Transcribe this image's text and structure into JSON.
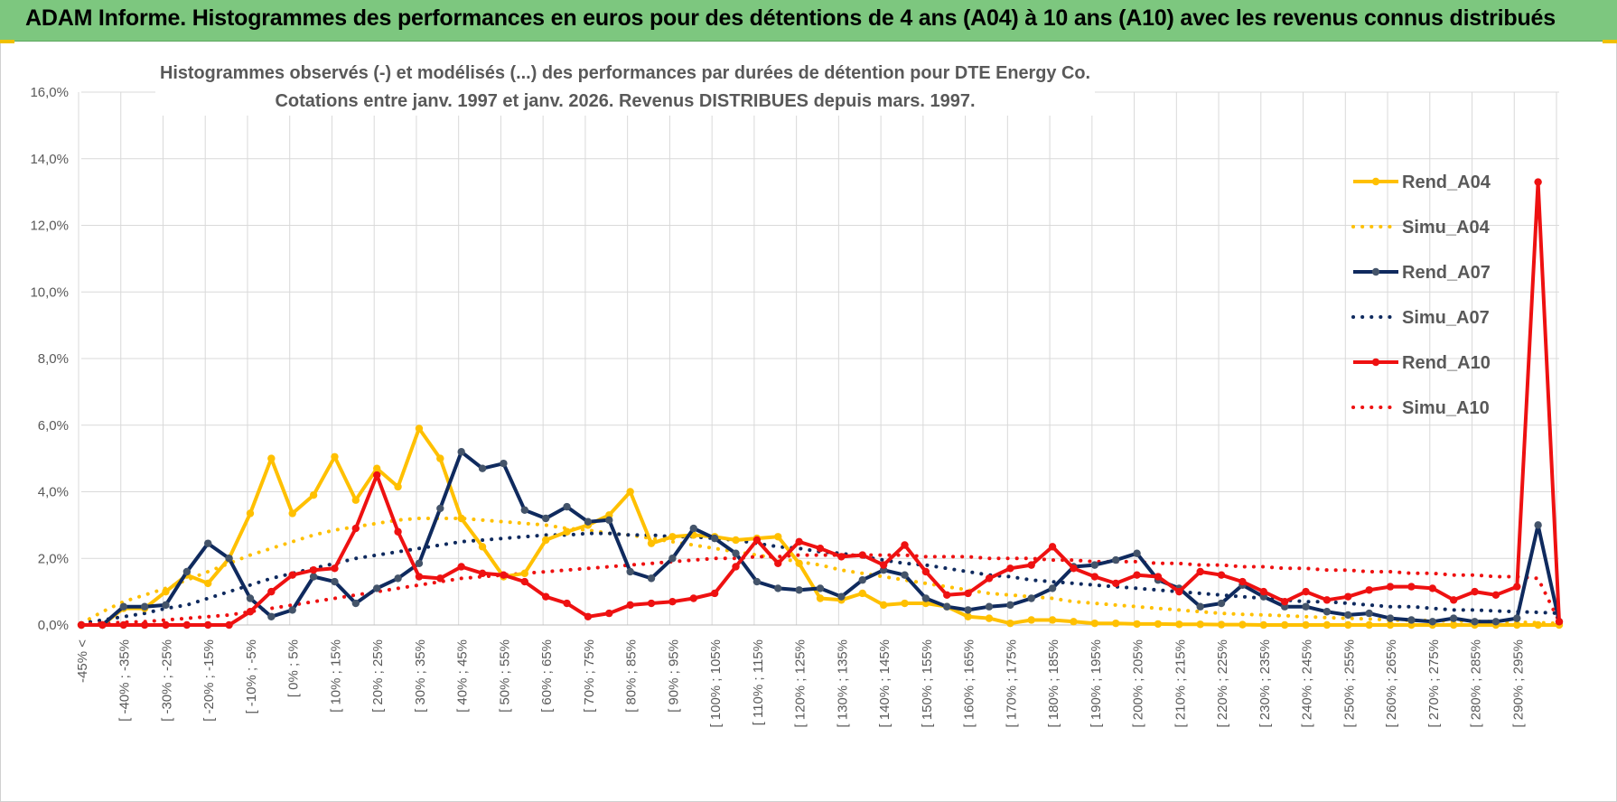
{
  "header": {
    "title": "ADAM Informe. Histogrammes des performances en euros pour des détentions de 4 ans (A04) à 10 ans (A10) avec les revenus connus distribués"
  },
  "chart_data": {
    "type": "line",
    "title": "Histogrammes observés (-) et modélisés (...) des performances par durées de détention pour DTE Energy Co.",
    "subtitle": "Cotations entre janv. 1997 et janv. 2026. Revenus DISTRIBUES depuis mars. 1997.",
    "xlabel": "",
    "ylabel": "",
    "ylim": [
      0,
      16
    ],
    "yticks": [
      "0,0%",
      "2,0%",
      "4,0%",
      "6,0%",
      "8,0%",
      "10,0%",
      "12,0%",
      "14,0%",
      "16,0%"
    ],
    "grid": true,
    "legend_position": "right",
    "categories": [
      "-45% <",
      "[ -45% ; -40%",
      "[ -40% ; -35%",
      "[ -35% ; -30%",
      "[ -30% ; -25%",
      "[ -25% ; -20%",
      "[ -20% ; -15%",
      "[ -15% ; -10%",
      "[ -10% ; -5%",
      "[ -5% ; 0%",
      "[ 0% ; 5%",
      "[ 5% ; 10%",
      "[ 10% ; 15%",
      "[ 15% ; 20%",
      "[ 20% ; 25%",
      "[ 25% ; 30%",
      "[ 30% ; 35%",
      "[ 35% ; 40%",
      "[ 40% ; 45%",
      "[ 45% ; 50%",
      "[ 50% ; 55%",
      "[ 55% ; 60%",
      "[ 60% ; 65%",
      "[ 65% ; 70%",
      "[ 70% ; 75%",
      "[ 75% ; 80%",
      "[ 80% ; 85%",
      "[ 85% ; 90%",
      "[ 90% ; 95%",
      "[ 95% ; 100%",
      "[ 100% ; 105%",
      "[ 105% ; 110%",
      "[ 110% ; 115%",
      "[ 115% ; 120%",
      "[ 120% ; 125%",
      "[ 125% ; 130%",
      "[ 130% ; 135%",
      "[ 135% ; 140%",
      "[ 140% ; 145%",
      "[ 145% ; 150%",
      "[ 150% ; 155%",
      "[ 155% ; 160%",
      "[ 160% ; 165%",
      "[ 165% ; 170%",
      "[ 170% ; 175%",
      "[ 175% ; 180%",
      "[ 180% ; 185%",
      "[ 185% ; 190%",
      "[ 190% ; 195%",
      "[ 195% ; 200%",
      "[ 200% ; 205%",
      "[ 205% ; 210%",
      "[ 210% ; 215%",
      "[ 215% ; 220%",
      "[ 220% ; 225%",
      "[ 225% ; 230%",
      "[ 230% ; 235%",
      "[ 235% ; 240%",
      "[ 240% ; 245%",
      "[ 245% ; 250%",
      "[ 250% ; 255%",
      "[ 255% ; 260%",
      "[ 260% ; 265%",
      "[ 265% ; 270%",
      "[ 270% ; 275%",
      "[ 275% ; 280%",
      "[ 280% ; 285%",
      "[ 285% ; 290%",
      "[ 290% ; 295%",
      "[ 295% ; 300%",
      "> 300%"
    ],
    "visible_tick_labels": [
      "-45% <",
      "[ -40% ; -35%",
      "[ -30% ; -25%",
      "[ -20% ; -15%",
      "[ -10% ; -5%",
      "[ 0% ; 5%",
      "[ 10% ; 15%",
      "[ 20% ; 25%",
      "[ 30% ; 35%",
      "[ 40% ; 45%",
      "[ 50% ; 55%",
      "[ 60% ; 65%",
      "[ 70% ; 75%",
      "[ 80% ; 85%",
      "[ 90% ; 95%",
      "[ 100% ; 105%",
      "[ 110% ; 115%",
      "[ 120% ; 125%",
      "[ 130% ; 135%",
      "[ 140% ; 145%",
      "[ 150% ; 155%",
      "[ 160% ; 165%",
      "[ 170% ; 175%",
      "[ 180% ; 185%",
      "[ 190% ; 195%",
      "[ 200% ; 205%",
      "[ 210% ; 215%",
      "[ 220% ; 225%",
      "[ 230% ; 235%",
      "[ 240% ; 245%",
      "[ 250% ; 255%",
      "[ 260% ; 265%",
      "[ 270% ; 275%",
      "[ 280% ; 285%",
      "[ 290% ; 295%"
    ],
    "series": [
      {
        "name": "Rend_A04",
        "style": "solid",
        "markers": true,
        "color": "#ffc000",
        "values": [
          0,
          0,
          0.5,
          0.5,
          1.0,
          1.5,
          1.25,
          2.0,
          3.35,
          5.0,
          3.35,
          3.9,
          5.05,
          3.75,
          4.7,
          4.15,
          5.9,
          5.0,
          3.2,
          2.35,
          1.45,
          1.55,
          2.55,
          2.8,
          3.0,
          3.3,
          4.0,
          2.45,
          2.65,
          2.7,
          2.65,
          2.55,
          2.6,
          2.65,
          1.85,
          0.8,
          0.75,
          0.95,
          0.6,
          0.65,
          0.65,
          0.55,
          0.25,
          0.2,
          0.05,
          0.15,
          0.15,
          0.1,
          0.05,
          0.05,
          0.03,
          0.03,
          0.02,
          0.02,
          0.01,
          0.01,
          0,
          0,
          0,
          0,
          0,
          0,
          0,
          0,
          0,
          0,
          0,
          0,
          0,
          0,
          0
        ]
      },
      {
        "name": "Simu_A04",
        "style": "dotted",
        "markers": false,
        "color": "#ffc000",
        "values": [
          0.05,
          0.4,
          0.7,
          0.9,
          1.1,
          1.35,
          1.6,
          1.85,
          2.1,
          2.3,
          2.5,
          2.7,
          2.85,
          2.95,
          3.05,
          3.15,
          3.2,
          3.2,
          3.2,
          3.15,
          3.1,
          3.05,
          3.0,
          2.9,
          2.85,
          2.75,
          2.7,
          2.6,
          2.5,
          2.4,
          2.3,
          2.2,
          2.1,
          2.0,
          1.9,
          1.8,
          1.65,
          1.55,
          1.45,
          1.35,
          1.25,
          1.15,
          1.05,
          0.95,
          0.9,
          0.85,
          0.8,
          0.7,
          0.65,
          0.6,
          0.55,
          0.5,
          0.45,
          0.4,
          0.35,
          0.32,
          0.3,
          0.28,
          0.25,
          0.22,
          0.2,
          0.18,
          0.15,
          0.14,
          0.13,
          0.12,
          0.11,
          0.1,
          0.08,
          0.07,
          0.05
        ]
      },
      {
        "name": "Rend_A07",
        "style": "solid",
        "markers": true,
        "color": "#0f2a5e",
        "values": [
          0,
          0,
          0.55,
          0.55,
          0.6,
          1.6,
          2.45,
          2.0,
          0.8,
          0.25,
          0.45,
          1.45,
          1.3,
          0.65,
          1.1,
          1.4,
          1.85,
          3.5,
          5.2,
          4.7,
          4.85,
          3.45,
          3.2,
          3.55,
          3.1,
          3.15,
          1.6,
          1.4,
          2.0,
          2.9,
          2.6,
          2.15,
          1.3,
          1.1,
          1.05,
          1.1,
          0.85,
          1.35,
          1.65,
          1.5,
          0.8,
          0.55,
          0.45,
          0.55,
          0.6,
          0.8,
          1.1,
          1.75,
          1.8,
          1.95,
          2.15,
          1.35,
          1.1,
          0.55,
          0.65,
          1.2,
          0.85,
          0.55,
          0.55,
          0.4,
          0.3,
          0.35,
          0.2,
          0.15,
          0.1,
          0.2,
          0.1,
          0.1,
          0.2,
          3.0,
          0.1
        ]
      },
      {
        "name": "Simu_A07",
        "style": "dotted",
        "markers": false,
        "color": "#0f2a5e",
        "values": [
          0.05,
          0.15,
          0.25,
          0.35,
          0.5,
          0.6,
          0.8,
          1.0,
          1.2,
          1.4,
          1.55,
          1.7,
          1.85,
          2.0,
          2.1,
          2.2,
          2.3,
          2.4,
          2.5,
          2.55,
          2.6,
          2.65,
          2.7,
          2.7,
          2.75,
          2.75,
          2.7,
          2.7,
          2.65,
          2.65,
          2.6,
          2.55,
          2.45,
          2.35,
          2.3,
          2.2,
          2.15,
          2.05,
          1.95,
          1.85,
          1.8,
          1.7,
          1.6,
          1.5,
          1.45,
          1.35,
          1.3,
          1.25,
          1.2,
          1.15,
          1.1,
          1.05,
          1.0,
          0.95,
          0.9,
          0.85,
          0.8,
          0.75,
          0.7,
          0.7,
          0.65,
          0.6,
          0.55,
          0.55,
          0.5,
          0.45,
          0.45,
          0.42,
          0.4,
          0.38,
          0.35
        ]
      },
      {
        "name": "Rend_A10",
        "style": "solid",
        "markers": true,
        "color": "#ee1111",
        "values": [
          0,
          0,
          0,
          0,
          0,
          0,
          0,
          0,
          0.4,
          1.0,
          1.5,
          1.65,
          1.7,
          2.9,
          4.5,
          2.8,
          1.45,
          1.4,
          1.75,
          1.55,
          1.5,
          1.3,
          0.85,
          0.65,
          0.25,
          0.35,
          0.6,
          0.65,
          0.7,
          0.8,
          0.95,
          1.75,
          2.55,
          1.85,
          2.5,
          2.3,
          2.05,
          2.1,
          1.8,
          2.4,
          1.6,
          0.9,
          0.95,
          1.4,
          1.7,
          1.8,
          2.35,
          1.7,
          1.45,
          1.25,
          1.5,
          1.45,
          1.0,
          1.6,
          1.5,
          1.3,
          1.0,
          0.7,
          1.0,
          0.75,
          0.85,
          1.05,
          1.15,
          1.15,
          1.1,
          0.75,
          1.0,
          0.9,
          1.15,
          13.3,
          0.1
        ]
      },
      {
        "name": "Simu_A10",
        "style": "dotted",
        "markers": false,
        "color": "#ee1111",
        "values": [
          0.03,
          0.05,
          0.08,
          0.1,
          0.15,
          0.2,
          0.25,
          0.3,
          0.4,
          0.5,
          0.6,
          0.7,
          0.8,
          0.9,
          1.0,
          1.1,
          1.2,
          1.3,
          1.4,
          1.45,
          1.5,
          1.55,
          1.6,
          1.65,
          1.7,
          1.75,
          1.8,
          1.85,
          1.9,
          1.95,
          2.0,
          2.0,
          2.05,
          2.05,
          2.1,
          2.1,
          2.1,
          2.1,
          2.1,
          2.1,
          2.05,
          2.05,
          2.05,
          2.0,
          2.0,
          2.0,
          1.95,
          1.95,
          1.9,
          1.9,
          1.9,
          1.85,
          1.85,
          1.8,
          1.8,
          1.75,
          1.75,
          1.7,
          1.7,
          1.65,
          1.65,
          1.6,
          1.6,
          1.55,
          1.55,
          1.5,
          1.5,
          1.45,
          1.45,
          1.4,
          0.1
        ]
      }
    ]
  }
}
